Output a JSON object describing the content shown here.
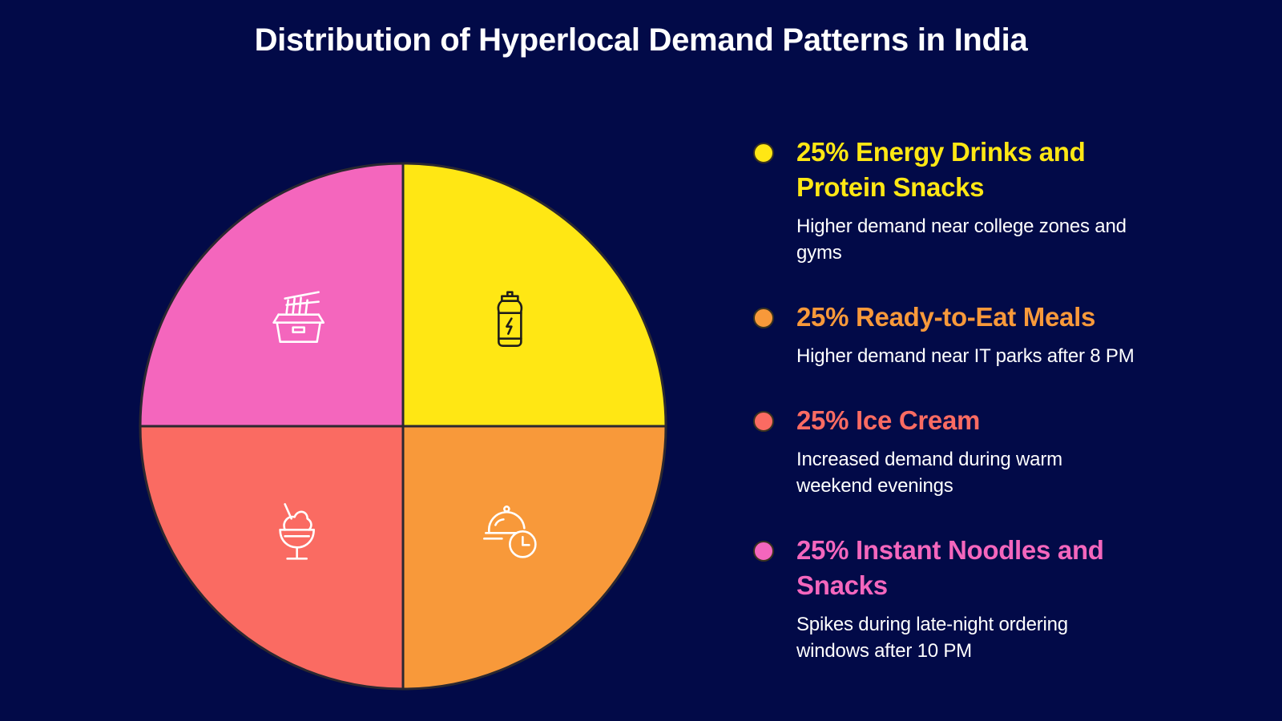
{
  "chart_data": {
    "type": "pie",
    "title": "Distribution of Hyperlocal Demand Patterns in India",
    "slices": [
      {
        "label": "25% Energy Drinks and Protein Snacks",
        "value": 25,
        "color": "#ffe714",
        "description": "Higher demand near college zones and gyms",
        "icon": "energy-drink-bottle-icon"
      },
      {
        "label": "25% Ready-to-Eat Meals",
        "value": 25,
        "color": "#f8993a",
        "description": "Higher demand near IT parks after 8 PM",
        "icon": "meal-cloche-clock-icon"
      },
      {
        "label": "25% Ice Cream",
        "value": 25,
        "color": "#fa6b62",
        "description": "Increased demand during warm weekend evenings",
        "icon": "ice-cream-cup-icon"
      },
      {
        "label": "25% Instant Noodles and Snacks",
        "value": 25,
        "color": "#f466bd",
        "description": "Spikes during late-night ordering windows after 10 PM",
        "icon": "noodle-box-chopsticks-icon"
      }
    ]
  }
}
